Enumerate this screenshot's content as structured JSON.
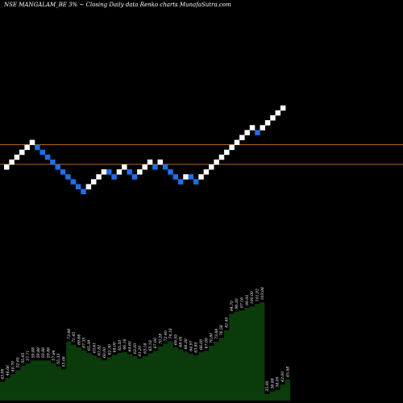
{
  "header": {
    "title": "NSE MANGALAM_BE 3% ~ Closing Daily data  Renko  charts MunafaSutra.com"
  },
  "colors": {
    "background": "#000000",
    "up_brick": "#ffffff",
    "down_brick": "#1e6fe8",
    "reference_line": "#b5651d",
    "volume_fill": "#0b3a0b"
  },
  "chart_data": {
    "type": "renko",
    "box_percent": 3,
    "bricks": [
      {
        "level": 0,
        "dir": "up"
      },
      {
        "level": 1,
        "dir": "up"
      },
      {
        "level": 2,
        "dir": "up"
      },
      {
        "level": 3,
        "dir": "up"
      },
      {
        "level": 4,
        "dir": "up"
      },
      {
        "level": 5,
        "dir": "up"
      },
      {
        "level": 4,
        "dir": "down"
      },
      {
        "level": 3,
        "dir": "down"
      },
      {
        "level": 2,
        "dir": "down"
      },
      {
        "level": 1,
        "dir": "down"
      },
      {
        "level": 0,
        "dir": "down"
      },
      {
        "level": -1,
        "dir": "down"
      },
      {
        "level": -2,
        "dir": "down"
      },
      {
        "level": -3,
        "dir": "down"
      },
      {
        "level": -4,
        "dir": "down"
      },
      {
        "level": -5,
        "dir": "down"
      },
      {
        "level": -4,
        "dir": "up"
      },
      {
        "level": -3,
        "dir": "up"
      },
      {
        "level": -2,
        "dir": "up"
      },
      {
        "level": -1,
        "dir": "up"
      },
      {
        "level": -1,
        "dir": "down"
      },
      {
        "level": -2,
        "dir": "down"
      },
      {
        "level": -1,
        "dir": "up"
      },
      {
        "level": 0,
        "dir": "up"
      },
      {
        "level": -1,
        "dir": "down"
      },
      {
        "level": -2,
        "dir": "down"
      },
      {
        "level": -1,
        "dir": "up"
      },
      {
        "level": 0,
        "dir": "up"
      },
      {
        "level": 1,
        "dir": "up"
      },
      {
        "level": 0,
        "dir": "down"
      },
      {
        "level": 1,
        "dir": "up"
      },
      {
        "level": 0,
        "dir": "down"
      },
      {
        "level": -1,
        "dir": "down"
      },
      {
        "level": -2,
        "dir": "down"
      },
      {
        "level": -3,
        "dir": "down"
      },
      {
        "level": -2,
        "dir": "up"
      },
      {
        "level": -2,
        "dir": "down"
      },
      {
        "level": -3,
        "dir": "down"
      },
      {
        "level": -2,
        "dir": "up"
      },
      {
        "level": -1,
        "dir": "up"
      },
      {
        "level": 0,
        "dir": "up"
      },
      {
        "level": 1,
        "dir": "up"
      },
      {
        "level": 2,
        "dir": "up"
      },
      {
        "level": 3,
        "dir": "up"
      },
      {
        "level": 4,
        "dir": "up"
      },
      {
        "level": 5,
        "dir": "up"
      },
      {
        "level": 6,
        "dir": "up"
      },
      {
        "level": 7,
        "dir": "up"
      },
      {
        "level": 8,
        "dir": "up"
      },
      {
        "level": 7,
        "dir": "down"
      },
      {
        "level": 8,
        "dir": "up"
      },
      {
        "level": 9,
        "dir": "up"
      },
      {
        "level": 10,
        "dir": "up"
      },
      {
        "level": 11,
        "dir": "up"
      },
      {
        "level": 12,
        "dir": "up"
      }
    ],
    "reference_lines": [
      1,
      5
    ],
    "volume_labels": [
      "43.98",
      "46.66",
      "49.70",
      "52.65",
      "55.95",
      "57.71",
      "59.88",
      "59.88",
      "59.88",
      "59.88",
      "57.84",
      "55.33",
      "53.08",
      "73.88",
      "71.45",
      "69.66",
      "67.35",
      "65.39",
      "63.61",
      "61.82",
      "60.00",
      "62.30",
      "64.00",
      "65.50",
      "66.18",
      "64.60",
      "63.00",
      "61.20",
      "63.18",
      "65.18",
      "67.00",
      "70.28",
      "72.40",
      "74.18",
      "69.55",
      "68.05",
      "66.38",
      "64.97",
      "63.85",
      "66.00",
      "67.00",
      "70.80",
      "73.88",
      "76.58",
      "82.40",
      "94.70",
      "96.30",
      "97.16",
      "99.00",
      "100.00",
      "101.92",
      "103.08",
      "35.00",
      "36.88",
      "38.05",
      "42.00",
      "45.58"
    ]
  }
}
